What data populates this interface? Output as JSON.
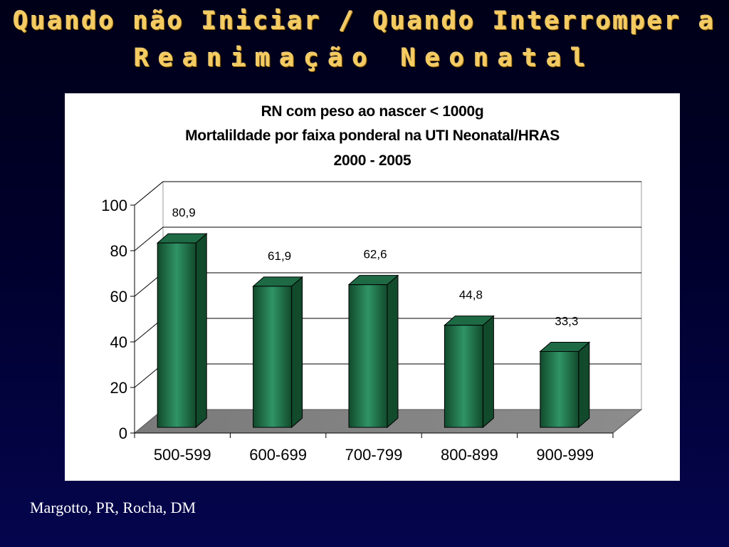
{
  "slide": {
    "title_line1": "Quando não Iniciar / Quando Interromper a",
    "title_line2": "Reanimação Neonatal",
    "credit": "Margotto, PR, Rocha, DM"
  },
  "colors": {
    "title_gold": "#f4cc62",
    "bar_front": "#2f9466",
    "bar_dark": "#124a2c",
    "floor": "#8c8c8c"
  },
  "chart_data": {
    "type": "bar",
    "title_lines": [
      "RN com peso ao nascer < 1000g",
      "Mortalildade por faixa ponderal na UTI Neonatal/HRAS",
      "2000 - 2005"
    ],
    "categories": [
      "500-599",
      "600-699",
      "700-799",
      "800-899",
      "900-999"
    ],
    "values": [
      80.9,
      61.9,
      62.6,
      44.8,
      33.3
    ],
    "data_labels": [
      "80,9",
      "61,9",
      "62,6",
      "44,8",
      "33,3"
    ],
    "ylim": [
      0,
      100
    ],
    "yticks": [
      0,
      20,
      40,
      60,
      80,
      100
    ],
    "grid": true,
    "legend": "none",
    "style": "3d-column"
  }
}
